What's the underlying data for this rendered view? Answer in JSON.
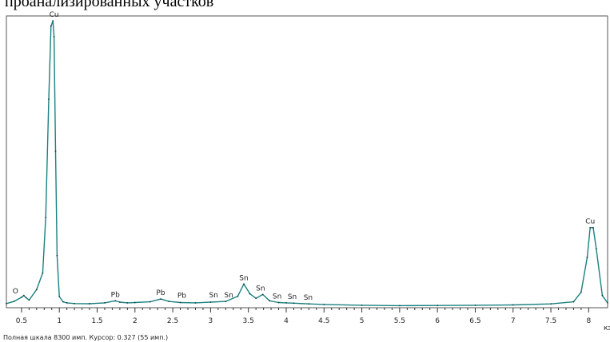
{
  "caption": "проанализированных участков",
  "status_text": "Полная шкала 8300 имп. Курсор: 0.327  (55 имп.)",
  "unit_label": "кэ",
  "colors": {
    "spectrum_line": "#1a8080",
    "axis": "#333333"
  },
  "chart_data": {
    "type": "line",
    "title": "",
    "xlabel": "кэ",
    "ylabel": "",
    "xlim": [
      0.3,
      8.25
    ],
    "ylim": [
      0,
      8300
    ],
    "grid": false,
    "xticks": [
      {
        "value": 0.5,
        "label": "0.5"
      },
      {
        "value": 1,
        "label": "1"
      },
      {
        "value": 1.5,
        "label": "1.5"
      },
      {
        "value": 2,
        "label": "2"
      },
      {
        "value": 2.5,
        "label": "2.5"
      },
      {
        "value": 3,
        "label": "3"
      },
      {
        "value": 3.5,
        "label": "3.5"
      },
      {
        "value": 4,
        "label": "4"
      },
      {
        "value": 4.5,
        "label": "4.5"
      },
      {
        "value": 5,
        "label": "5"
      },
      {
        "value": 5.5,
        "label": "5.5"
      },
      {
        "value": 6,
        "label": "6"
      },
      {
        "value": 6.5,
        "label": "6.5"
      },
      {
        "value": 7,
        "label": "7"
      },
      {
        "value": 7.5,
        "label": "7.5"
      },
      {
        "value": 8,
        "label": "8"
      }
    ],
    "series": [
      {
        "x": [
          0.3,
          0.4,
          0.5,
          0.53,
          0.56,
          0.6,
          0.7,
          0.78,
          0.82,
          0.86,
          0.89,
          0.915,
          0.93,
          0.95,
          0.97,
          1.0,
          1.05,
          1.1,
          1.2,
          1.4,
          1.6,
          1.74,
          1.8,
          1.9,
          2.0,
          2.2,
          2.34,
          2.45,
          2.6,
          2.8,
          3.0,
          3.2,
          3.36,
          3.44,
          3.52,
          3.6,
          3.69,
          3.78,
          3.9,
          4.0,
          4.1,
          4.3,
          4.5,
          5.0,
          5.5,
          6.0,
          6.5,
          7.0,
          7.5,
          7.8,
          7.9,
          7.98,
          8.02,
          8.06,
          8.1,
          8.18,
          8.25
        ],
        "y": [
          120,
          180,
          300,
          350,
          290,
          220,
          520,
          1000,
          2600,
          6000,
          8100,
          8250,
          7800,
          4500,
          1500,
          320,
          170,
          140,
          120,
          115,
          140,
          200,
          160,
          140,
          150,
          170,
          250,
          180,
          150,
          140,
          160,
          180,
          330,
          680,
          400,
          270,
          380,
          200,
          150,
          140,
          130,
          110,
          95,
          70,
          60,
          65,
          70,
          80,
          110,
          170,
          450,
          1450,
          2300,
          2300,
          1700,
          350,
          140
        ]
      }
    ],
    "peak_labels": [
      {
        "x": 0.42,
        "y": 300,
        "label": "O"
      },
      {
        "x": 0.93,
        "y": 8250,
        "label": "Cu"
      },
      {
        "x": 1.74,
        "y": 200,
        "label": "Pb"
      },
      {
        "x": 2.34,
        "y": 250,
        "label": "Pb"
      },
      {
        "x": 2.62,
        "y": 170,
        "label": "Pb"
      },
      {
        "x": 3.04,
        "y": 180,
        "label": "Sn"
      },
      {
        "x": 3.24,
        "y": 180,
        "label": "Sn"
      },
      {
        "x": 3.44,
        "y": 680,
        "label": "Sn"
      },
      {
        "x": 3.66,
        "y": 380,
        "label": "Sn"
      },
      {
        "x": 3.88,
        "y": 150,
        "label": "Sn"
      },
      {
        "x": 4.08,
        "y": 140,
        "label": "Sn"
      },
      {
        "x": 4.29,
        "y": 120,
        "label": "Sn"
      },
      {
        "x": 8.02,
        "y": 2300,
        "label": "Cu"
      }
    ]
  }
}
